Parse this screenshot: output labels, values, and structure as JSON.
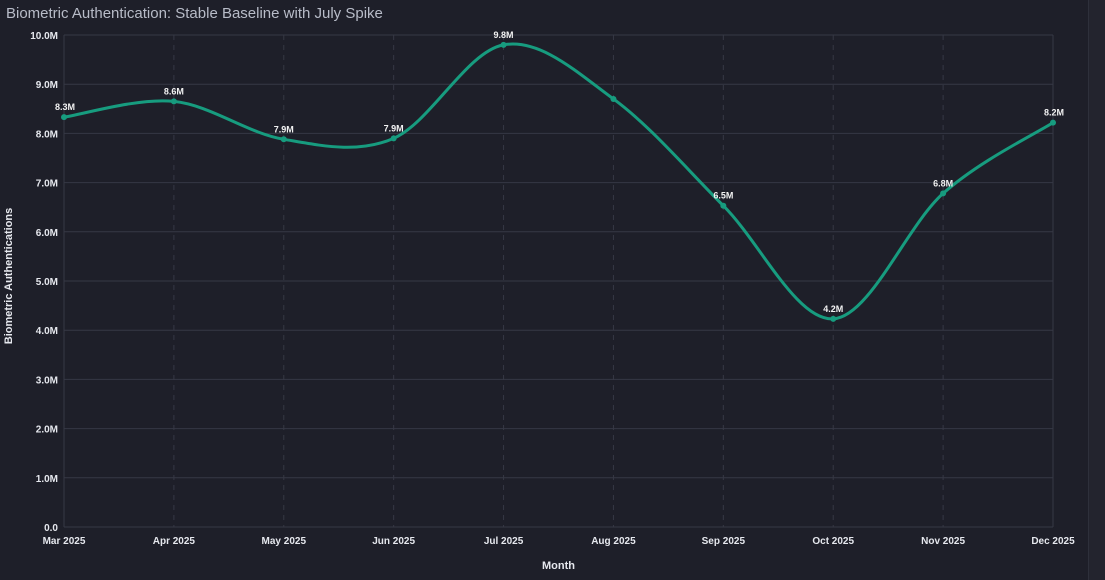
{
  "chart_data": {
    "type": "line",
    "title": "Biometric Authentication: Stable Baseline with July Spike",
    "xlabel": "Month",
    "ylabel": "Biometric Authentications",
    "categories": [
      "Mar 2025",
      "Apr 2025",
      "May 2025",
      "Jun 2025",
      "Jul 2025",
      "Aug 2025",
      "Sep 2025",
      "Oct 2025",
      "Nov 2025",
      "Dec 2025"
    ],
    "y_ticks": [
      "0.0",
      "1.0M",
      "2.0M",
      "3.0M",
      "4.0M",
      "5.0M",
      "6.0M",
      "7.0M",
      "8.0M",
      "9.0M",
      "10.0M"
    ],
    "ylim": [
      0,
      10000000
    ],
    "series": [
      {
        "values": [
          8330000,
          8650000,
          7880000,
          7900000,
          9800000,
          8700000,
          6530000,
          4230000,
          6780000,
          8220000
        ],
        "data_labels": [
          "8.3M",
          "8.6M",
          "7.9M",
          "7.9M",
          "9.8M",
          "",
          "6.5M",
          "4.2M",
          "6.8M",
          "8.2M"
        ],
        "color": "#179c7f"
      }
    ],
    "grid": true,
    "background": "#1e1f29",
    "grid_color": "#363845"
  }
}
